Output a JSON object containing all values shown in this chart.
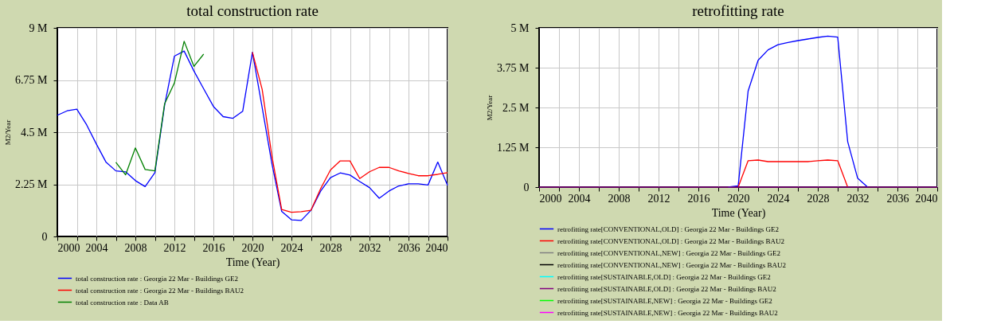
{
  "chart_data": [
    {
      "type": "line",
      "title": "total construction rate",
      "xlabel": "Time (Year)",
      "ylabel": "M2/Year",
      "grid": true,
      "legend": "bottom",
      "x": [
        2000,
        2001,
        2002,
        2003,
        2004,
        2005,
        2006,
        2007,
        2008,
        2009,
        2010,
        2011,
        2012,
        2013,
        2014,
        2015,
        2016,
        2017,
        2018,
        2019,
        2020,
        2021,
        2022,
        2023,
        2024,
        2025,
        2026,
        2027,
        2028,
        2029,
        2030,
        2031,
        2032,
        2033,
        2034,
        2035,
        2036,
        2037,
        2038,
        2039,
        2040
      ],
      "xlim": [
        2000,
        2040
      ],
      "xticks": [
        2000,
        {
          "value": 2002,
          "label": null
        },
        2004,
        {
          "value": 2006,
          "label": null
        },
        2008,
        {
          "value": 2010,
          "label": null
        },
        2012,
        {
          "value": 2014,
          "label": null
        },
        2016,
        {
          "value": 2018,
          "label": null
        },
        2020,
        {
          "value": 2022,
          "label": null
        },
        2024,
        {
          "value": 2026,
          "label": null
        },
        2028,
        {
          "value": 2030,
          "label": null
        },
        2032,
        {
          "value": 2034,
          "label": null
        },
        2036,
        {
          "value": 2038,
          "label": null
        },
        2040
      ],
      "ylim": [
        0,
        9000000
      ],
      "yticks": [
        0,
        {
          "value": 2250000,
          "label": "2.25 M"
        },
        {
          "value": 4500000,
          "label": "4.5 M"
        },
        {
          "value": 6750000,
          "label": "6.75 M"
        },
        {
          "value": 9000000,
          "label": "9 M"
        }
      ],
      "series": [
        {
          "name": "total construction rate : Georgia 22 Mar - Buildings GE2",
          "color": "#0000ff",
          "values": [
            5230000,
            5420000,
            5490000,
            4820000,
            3990000,
            3200000,
            2830000,
            2790000,
            2410000,
            2150000,
            2750000,
            5670000,
            7780000,
            8000000,
            7140000,
            6370000,
            5610000,
            5170000,
            5100000,
            5400000,
            7950000,
            5560000,
            3130000,
            1080000,
            720000,
            690000,
            1130000,
            1960000,
            2540000,
            2740000,
            2650000,
            2370000,
            2110000,
            1650000,
            1960000,
            2180000,
            2270000,
            2270000,
            2220000,
            3210000,
            2210000
          ]
        },
        {
          "name": "total construction rate : Georgia 22 Mar - Buildings BAU2",
          "color": "#ff0000",
          "values": [
            null,
            null,
            null,
            null,
            null,
            null,
            null,
            null,
            null,
            null,
            null,
            null,
            null,
            null,
            null,
            null,
            null,
            null,
            null,
            null,
            7950000,
            6340000,
            3460000,
            1160000,
            1040000,
            1070000,
            1130000,
            2070000,
            2870000,
            3260000,
            3260000,
            2500000,
            2790000,
            2980000,
            2980000,
            2830000,
            2720000,
            2620000,
            2620000,
            2680000,
            2750000
          ]
        },
        {
          "name": "total construction rate : Data AB",
          "color": "#008000",
          "x": [
            2006,
            2007,
            2008,
            2009,
            2010,
            2011,
            2012,
            2013,
            2014,
            2015
          ],
          "values": [
            3200000,
            2660000,
            3820000,
            2890000,
            2830000,
            5730000,
            6620000,
            8420000,
            7340000,
            7870000
          ]
        }
      ]
    },
    {
      "type": "line",
      "title": "retrofitting rate",
      "xlabel": "Time (Year)",
      "ylabel": "M2/Year",
      "grid": true,
      "legend": "bottom",
      "x": [
        2000,
        2001,
        2002,
        2003,
        2004,
        2005,
        2006,
        2007,
        2008,
        2009,
        2010,
        2011,
        2012,
        2013,
        2014,
        2015,
        2016,
        2017,
        2018,
        2019,
        2020,
        2021,
        2022,
        2023,
        2024,
        2025,
        2026,
        2027,
        2028,
        2029,
        2030,
        2031,
        2032,
        2033,
        2034,
        2035,
        2036,
        2037,
        2038,
        2039,
        2040
      ],
      "xlim": [
        2000,
        2040
      ],
      "xticks": [
        2000,
        {
          "value": 2002,
          "label": null
        },
        2004,
        {
          "value": 2006,
          "label": null
        },
        2008,
        {
          "value": 2010,
          "label": null
        },
        2012,
        {
          "value": 2014,
          "label": null
        },
        2016,
        {
          "value": 2018,
          "label": null
        },
        2020,
        {
          "value": 2022,
          "label": null
        },
        2024,
        {
          "value": 2026,
          "label": null
        },
        2028,
        {
          "value": 2030,
          "label": null
        },
        2032,
        {
          "value": 2034,
          "label": null
        },
        2036,
        {
          "value": 2038,
          "label": null
        },
        2040
      ],
      "ylim": [
        0,
        5000000
      ],
      "yticks": [
        0,
        {
          "value": 1250000,
          "label": "1.25 M"
        },
        {
          "value": 2500000,
          "label": "2.5 M"
        },
        {
          "value": 3750000,
          "label": "3.75 M"
        },
        {
          "value": 5000000,
          "label": "5 M"
        }
      ],
      "series": [
        {
          "name": "retrofitting rate[CONVENTIONAL,OLD] : Georgia 22 Mar - Buildings GE2",
          "color": "#0000ff",
          "values": [
            null,
            null,
            null,
            null,
            null,
            null,
            null,
            null,
            null,
            null,
            null,
            null,
            null,
            null,
            null,
            null,
            null,
            null,
            null,
            0,
            40000,
            3020000,
            3980000,
            4310000,
            4470000,
            4540000,
            4600000,
            4650000,
            4700000,
            4740000,
            4710000,
            1430000,
            280000,
            0,
            null,
            null,
            null,
            null,
            null,
            null,
            null
          ]
        },
        {
          "name": "retrofitting rate[CONVENTIONAL,OLD] : Georgia 22 Mar - Buildings BAU2",
          "color": "#ff0000",
          "values": [
            null,
            null,
            null,
            null,
            null,
            null,
            null,
            null,
            null,
            null,
            null,
            null,
            null,
            null,
            null,
            null,
            null,
            null,
            null,
            null,
            0,
            830000,
            850000,
            800000,
            800000,
            800000,
            800000,
            800000,
            830000,
            850000,
            830000,
            0,
            null,
            null,
            null,
            null,
            null,
            null,
            null,
            null,
            null
          ]
        },
        {
          "name": "retrofitting rate[CONVENTIONAL,NEW] : Georgia 22 Mar - Buildings GE2",
          "color": "#808080",
          "values": [
            null,
            null,
            null,
            null,
            null,
            null,
            null,
            null,
            null,
            null,
            null,
            null,
            null,
            null,
            null,
            null,
            null,
            null,
            null,
            null,
            null,
            null,
            null,
            null,
            null,
            null,
            null,
            null,
            null,
            null,
            null,
            null,
            null,
            null,
            null,
            null,
            null,
            null,
            null,
            null,
            null
          ]
        },
        {
          "name": "retrofitting rate[CONVENTIONAL,NEW] : Georgia 22 Mar - Buildings BAU2",
          "color": "#000000",
          "values": [
            null,
            null,
            null,
            null,
            null,
            null,
            null,
            null,
            null,
            null,
            null,
            null,
            null,
            null,
            null,
            null,
            null,
            null,
            null,
            null,
            null,
            null,
            null,
            null,
            null,
            null,
            null,
            null,
            null,
            null,
            null,
            null,
            null,
            null,
            null,
            null,
            null,
            null,
            null,
            null,
            null
          ]
        },
        {
          "name": "retrofitting rate[SUSTAINABLE,OLD] : Georgia 22 Mar - Buildings GE2",
          "color": "#00ffff",
          "values": [
            null,
            null,
            null,
            null,
            null,
            null,
            null,
            null,
            null,
            null,
            null,
            null,
            null,
            null,
            null,
            null,
            null,
            null,
            null,
            null,
            null,
            null,
            null,
            null,
            null,
            null,
            null,
            null,
            null,
            null,
            null,
            null,
            null,
            null,
            null,
            null,
            null,
            null,
            null,
            null,
            null
          ]
        },
        {
          "name": "retrofitting rate[SUSTAINABLE,OLD] : Georgia 22 Mar - Buildings BAU2",
          "color": "#800080",
          "values": [
            0,
            0,
            0,
            0,
            0,
            0,
            0,
            0,
            0,
            0,
            0,
            0,
            0,
            0,
            0,
            0,
            0,
            0,
            0,
            0,
            0,
            0,
            0,
            0,
            0,
            0,
            0,
            0,
            0,
            0,
            0,
            0,
            0,
            0,
            0,
            0,
            0,
            0,
            0,
            0,
            0
          ]
        },
        {
          "name": "retrofitting rate[SUSTAINABLE,NEW] : Georgia 22 Mar - Buildings GE2",
          "color": "#00ff00",
          "values": [
            null,
            null,
            null,
            null,
            null,
            null,
            null,
            null,
            null,
            null,
            null,
            null,
            null,
            null,
            null,
            null,
            null,
            null,
            null,
            null,
            null,
            null,
            null,
            null,
            null,
            null,
            null,
            null,
            null,
            null,
            null,
            null,
            null,
            null,
            null,
            null,
            null,
            null,
            null,
            null,
            null
          ]
        },
        {
          "name": "retrofitting rate[SUSTAINABLE,NEW] : Georgia 22 Mar - Buildings BAU2",
          "color": "#ff00ff",
          "values": [
            null,
            null,
            null,
            null,
            null,
            null,
            null,
            null,
            null,
            null,
            null,
            null,
            null,
            null,
            null,
            null,
            null,
            null,
            null,
            null,
            null,
            null,
            null,
            null,
            null,
            null,
            null,
            null,
            null,
            null,
            null,
            null,
            null,
            null,
            null,
            null,
            null,
            null,
            null,
            null,
            null
          ]
        }
      ]
    }
  ]
}
